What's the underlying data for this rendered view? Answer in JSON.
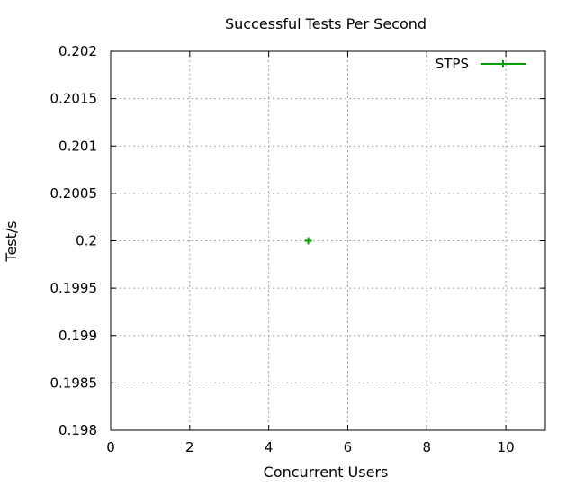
{
  "chart_data": {
    "type": "scatter",
    "title": "Successful Tests Per Second",
    "xlabel": "Concurrent Users",
    "ylabel": "Test/s",
    "xlim": [
      0,
      11
    ],
    "ylim": [
      0.198,
      0.202
    ],
    "x_ticks": [
      0,
      2,
      4,
      6,
      8,
      10
    ],
    "x_tick_labels": [
      "0",
      "2",
      "4",
      "6",
      "8",
      "10"
    ],
    "y_ticks": [
      0.198,
      0.1985,
      0.199,
      0.1995,
      0.2,
      0.2005,
      0.201,
      0.2015,
      0.202
    ],
    "y_tick_labels": [
      "0.198",
      "0.1985",
      "0.199",
      "0.1995",
      "0.2",
      "0.2005",
      "0.201",
      "0.2015",
      "0.202"
    ],
    "grid": true,
    "legend_position": "top-right",
    "series": [
      {
        "name": "STPS",
        "color": "#00a000",
        "marker": "plus",
        "points": [
          {
            "x": 5,
            "y": 0.2
          }
        ]
      }
    ]
  }
}
